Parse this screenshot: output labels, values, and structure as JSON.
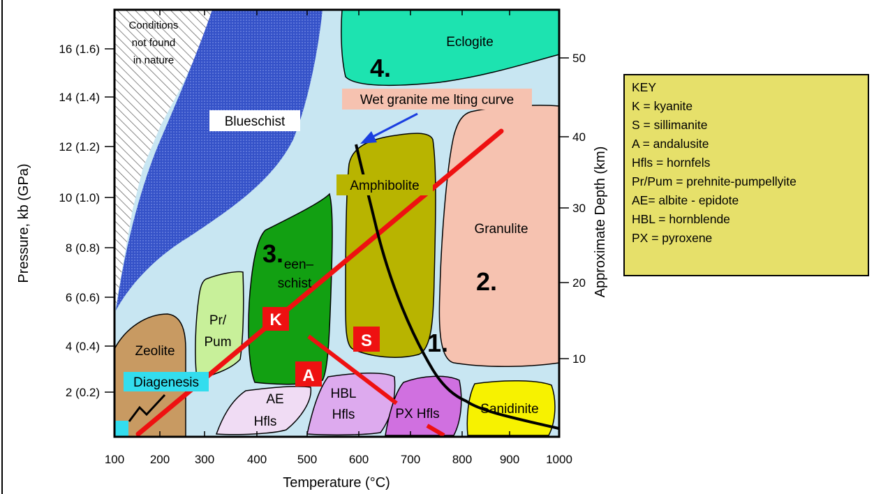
{
  "axes": {
    "x_title": "Temperature (°C)",
    "y_left_title": "Pressure, kb (GPa)",
    "y_right_title": "Approximate Depth (km)",
    "x_ticks": [
      "100",
      "200",
      "300",
      "400",
      "500",
      "600",
      "700",
      "800",
      "900",
      "1000"
    ],
    "y_left_ticks": [
      "2 (0.2)",
      "4 (0.4)",
      "6 (0.6)",
      "8 (0.8)",
      "10 (1.0)",
      "12 (1.2)",
      "14 (1.4)",
      "16 (1.6)"
    ],
    "y_right_ticks": [
      "10",
      "20",
      "30",
      "40",
      "50"
    ]
  },
  "regions": {
    "no_nature_line1": "Conditions",
    "no_nature_line2": "not found",
    "no_nature_line3": "in nature",
    "blueschist": "Blueschist",
    "eclogite": "Eclogite",
    "amphibolite": "Amphibolite",
    "granulite": "Granulite",
    "greenschist_line1": "een–",
    "greenschist_line2": "schist",
    "prpum_line1": "Pr/",
    "prpum_line2": "Pum",
    "zeolite": "Zeolite",
    "diagenesis": "Diagenesis",
    "ae_hfls_line1": "AE",
    "ae_hfls_line2": "Hfls",
    "hbl_hfls_line1": "HBL",
    "hbl_hfls_line2": "Hfls",
    "px_hfls": "PX Hfls",
    "sanidinite": "Sanidinite"
  },
  "annotations": {
    "melting_curve": "Wet granite me lting curve",
    "num1": "1.",
    "num2": "2.",
    "num3": "3.",
    "num4": "4.",
    "kyanite": "K",
    "sillimanite": "S",
    "andalusite": "A"
  },
  "key": {
    "title": "KEY",
    "items": [
      "K = kyanite",
      "S = sillimanite",
      "A = andalusite",
      "Hfls = hornfels",
      "Pr/Pum = prehnite-pumpellyite",
      "AE= albite - epidote",
      "HBL = hornblende",
      "PX = pyroxene"
    ]
  },
  "colors": {
    "background_field": "#c8e6f2",
    "blueschist": "#3552c8",
    "eclogite": "#1de3b0",
    "amphibolite": "#b8b400",
    "granulite": "#f6c2b0",
    "greenschist": "#12a012",
    "prpum": "#c8f09a",
    "zeolite": "#c89a62",
    "ae_hfls": "#f0dcf4",
    "hbl_hfls": "#ddaaee",
    "px_hfls": "#d070e0",
    "sanidinite": "#f7f200",
    "diagenesis": "#33ddee",
    "geotherm_red": "#ee1111",
    "melting_black": "#000000",
    "arrow_blue": "#1a3ee0",
    "key_bg": "#e6e06a"
  }
}
